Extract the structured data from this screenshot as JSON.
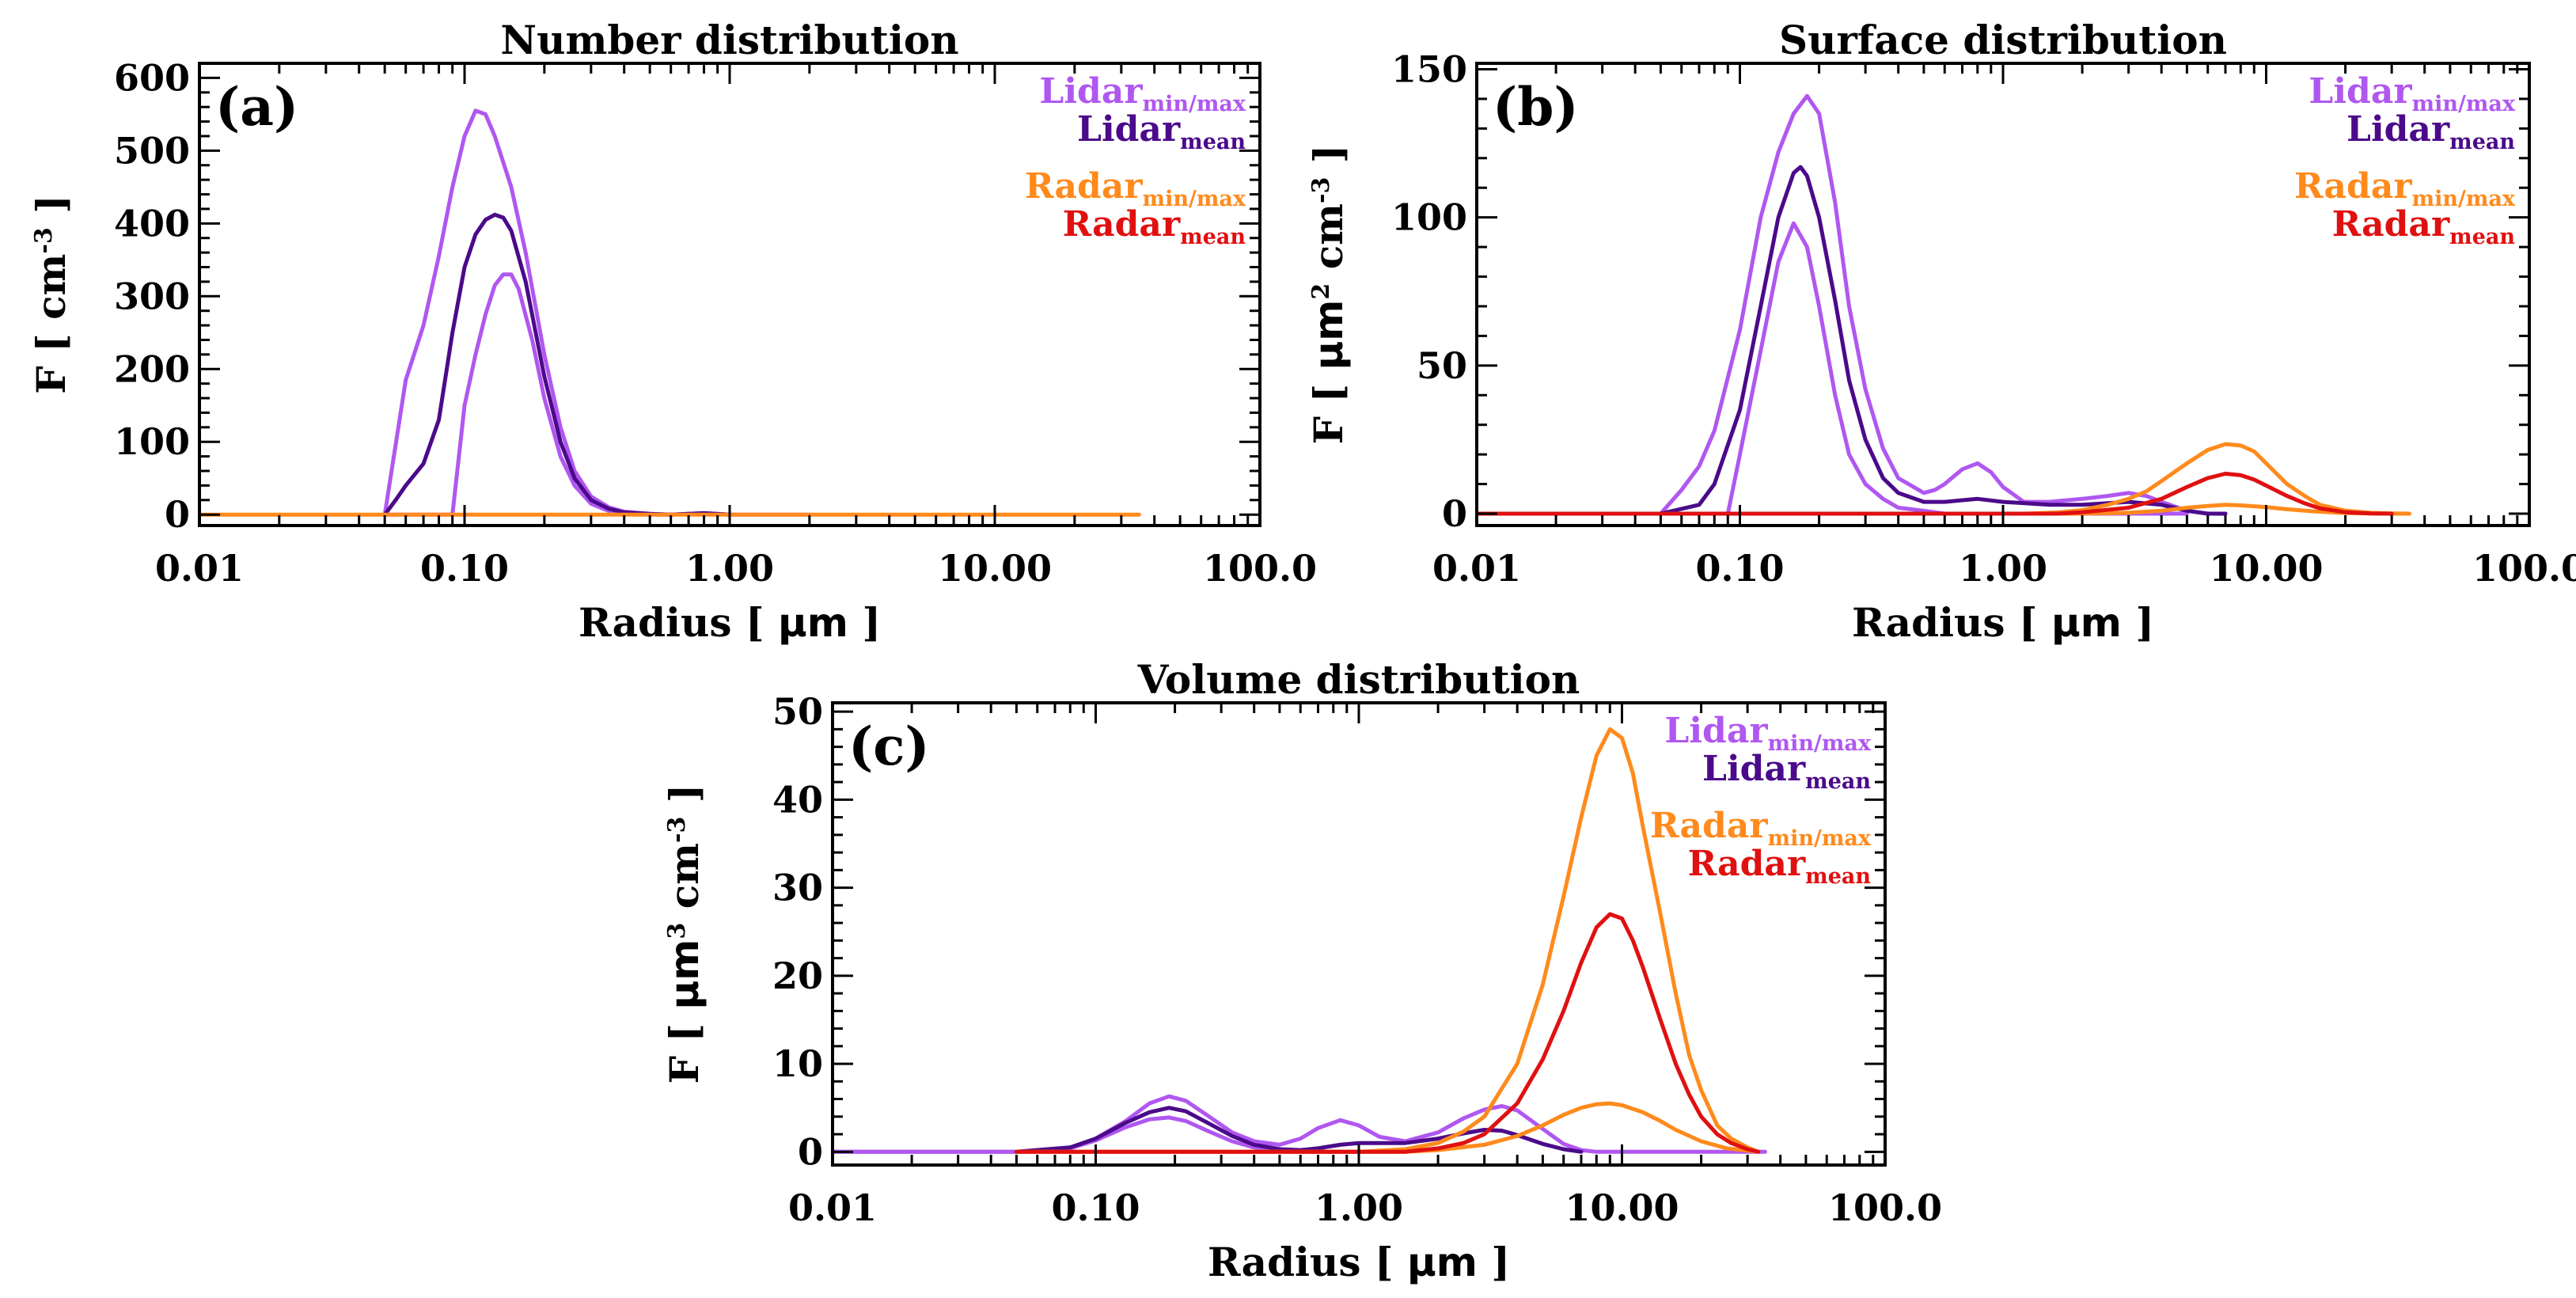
{
  "colors": {
    "lidar_minmax": "#b057f0",
    "lidar_mean": "#4b0a8a",
    "radar_minmax": "#ff8a1c",
    "radar_mean": "#e01010"
  },
  "legend": {
    "lidar": "Lidar",
    "radar": "Radar",
    "minmax": "min/max",
    "mean": "mean"
  },
  "xaxis": {
    "label_main": "Radius [ ",
    "label_unit": "μm",
    "label_end": " ]",
    "tick_labels": [
      "0.01",
      "0.10",
      "1.00",
      "10.00",
      "100.0"
    ],
    "tick_values": [
      0.01,
      0.1,
      1,
      10,
      100
    ]
  },
  "chart_data": [
    {
      "id": "a",
      "type": "line",
      "panel_label": "(a)",
      "title": "Number distribution",
      "ylabel": {
        "prefix": "F [ cm",
        "sup": "-3",
        "suffix": " ]"
      },
      "xscale": "log",
      "xlim": [
        0.01,
        100
      ],
      "ylim": [
        -15,
        620
      ],
      "yticks": [
        0,
        100,
        200,
        300,
        400,
        500,
        600
      ],
      "ytick_labels": [
        "0",
        "100",
        "200",
        "300",
        "400",
        "500",
        "600"
      ],
      "legend_position": "top-right",
      "series": [
        {
          "name": "Lidar max",
          "role": "lidar_minmax",
          "x": [
            0.05,
            0.06,
            0.07,
            0.08,
            0.09,
            0.1,
            0.11,
            0.12,
            0.13,
            0.15,
            0.17,
            0.2,
            0.23,
            0.26,
            0.3,
            0.35,
            0.4,
            0.5,
            0.6,
            0.8,
            1,
            1.5,
            2
          ],
          "y": [
            0,
            185,
            260,
            355,
            450,
            520,
            555,
            550,
            520,
            450,
            360,
            220,
            120,
            60,
            25,
            10,
            4,
            1,
            0,
            2,
            0,
            0,
            0
          ]
        },
        {
          "name": "Lidar min",
          "role": "lidar_minmax",
          "x": [
            0.05,
            0.09,
            0.1,
            0.11,
            0.12,
            0.13,
            0.14,
            0.15,
            0.16,
            0.18,
            0.2,
            0.23,
            0.26,
            0.3,
            0.35,
            0.4,
            0.5,
            0.6,
            0.8,
            1
          ],
          "y": [
            0,
            0,
            150,
            220,
            275,
            315,
            330,
            330,
            310,
            240,
            160,
            80,
            40,
            15,
            5,
            2,
            0,
            0,
            2,
            0
          ]
        },
        {
          "name": "Lidar mean",
          "role": "lidar_mean",
          "x": [
            0.05,
            0.055,
            0.06,
            0.07,
            0.08,
            0.09,
            0.1,
            0.11,
            0.12,
            0.13,
            0.14,
            0.15,
            0.17,
            0.2,
            0.23,
            0.26,
            0.3,
            0.35,
            0.4,
            0.5,
            0.6,
            0.8,
            1
          ],
          "y": [
            0,
            20,
            40,
            70,
            130,
            250,
            340,
            385,
            405,
            412,
            408,
            390,
            320,
            190,
            100,
            50,
            20,
            8,
            3,
            1,
            0,
            2,
            0
          ]
        },
        {
          "name": "Radar",
          "role": "radar_minmax",
          "x": [
            0.01,
            35
          ],
          "y": [
            0,
            0
          ]
        }
      ]
    },
    {
      "id": "b",
      "type": "line",
      "panel_label": "(b)",
      "title": "Surface distribution",
      "ylabel": {
        "prefix": "F [ ",
        "unit": "μm",
        "sup1": "2",
        "mid": " cm",
        "sup2": "-3",
        "suffix": " ]"
      },
      "xscale": "log",
      "xlim": [
        0.01,
        100
      ],
      "ylim": [
        -4,
        152
      ],
      "yticks": [
        0,
        50,
        100,
        150
      ],
      "ytick_labels": [
        "0",
        "50",
        "100",
        "150"
      ],
      "legend_position": "top-right",
      "series": [
        {
          "name": "Lidar max",
          "role": "lidar_minmax",
          "x": [
            0.05,
            0.06,
            0.07,
            0.08,
            0.1,
            0.12,
            0.14,
            0.16,
            0.18,
            0.2,
            0.23,
            0.26,
            0.3,
            0.35,
            0.4,
            0.5,
            0.55,
            0.6,
            0.7,
            0.8,
            0.9,
            1,
            1.2,
            1.5,
            2,
            2.5,
            3,
            3.5,
            4,
            5,
            6,
            7
          ],
          "y": [
            0,
            8,
            16,
            28,
            62,
            100,
            122,
            135,
            141,
            135,
            105,
            70,
            42,
            22,
            12,
            7,
            8,
            10,
            15,
            17,
            14,
            9,
            4,
            4,
            5,
            6,
            7,
            6,
            4,
            1,
            0,
            0
          ]
        },
        {
          "name": "Lidar min",
          "role": "lidar_minmax",
          "x": [
            0.05,
            0.09,
            0.1,
            0.12,
            0.14,
            0.16,
            0.18,
            0.2,
            0.23,
            0.26,
            0.3,
            0.35,
            0.4,
            0.5,
            0.6,
            0.7,
            0.8,
            1,
            1.5,
            2,
            3,
            4,
            5
          ],
          "y": [
            0,
            0,
            20,
            55,
            85,
            98,
            90,
            70,
            40,
            20,
            10,
            5,
            2,
            1,
            0,
            0,
            0,
            0,
            0,
            0,
            0,
            0,
            0
          ]
        },
        {
          "name": "Lidar mean",
          "role": "lidar_mean",
          "x": [
            0.05,
            0.07,
            0.08,
            0.1,
            0.12,
            0.14,
            0.16,
            0.17,
            0.18,
            0.2,
            0.23,
            0.26,
            0.3,
            0.35,
            0.4,
            0.5,
            0.6,
            0.8,
            1,
            1.5,
            2,
            3,
            4,
            5,
            6,
            7
          ],
          "y": [
            0,
            3,
            10,
            35,
            70,
            100,
            115,
            117,
            114,
            100,
            72,
            45,
            25,
            12,
            7,
            4,
            4,
            5,
            4,
            3,
            3,
            4,
            3,
            1,
            0,
            0
          ]
        },
        {
          "name": "Radar max",
          "role": "radar_minmax",
          "x": [
            0.01,
            1.2,
            1.6,
            2,
            2.5,
            3,
            3.5,
            4,
            5,
            6,
            7,
            8,
            9,
            10,
            12,
            14,
            16,
            20,
            25,
            30,
            35
          ],
          "y": [
            0,
            0,
            0.4,
            1.2,
            3,
            5,
            7.5,
            11,
            17,
            21.5,
            23.5,
            23,
            21,
            17,
            10,
            6,
            3,
            1,
            0.3,
            0.1,
            0
          ]
        },
        {
          "name": "Radar min",
          "role": "radar_minmax",
          "x": [
            0.01,
            2,
            3,
            4,
            5,
            6,
            7,
            8,
            10,
            12,
            15,
            20,
            25,
            35
          ],
          "y": [
            0,
            0,
            0.3,
            1,
            2,
            2.6,
            3,
            2.8,
            2.2,
            1.5,
            0.8,
            0.2,
            0.05,
            0
          ]
        },
        {
          "name": "Radar mean",
          "role": "radar_mean",
          "x": [
            0.01,
            1.6,
            2,
            3,
            4,
            5,
            6,
            7,
            8,
            9,
            10,
            12,
            14,
            16,
            20,
            25,
            30
          ],
          "y": [
            0,
            0,
            0.5,
            2,
            5,
            9,
            12,
            13.5,
            13,
            11.5,
            9.5,
            6,
            3.5,
            1.8,
            0.5,
            0.1,
            0
          ]
        }
      ]
    },
    {
      "id": "c",
      "type": "line",
      "panel_label": "(c)",
      "title": "Volume distribution",
      "ylabel": {
        "prefix": "F [ ",
        "unit": "μm",
        "sup1": "3",
        "mid": " cm",
        "sup2": "-3",
        "suffix": " ]"
      },
      "xscale": "log",
      "xlim": [
        0.01,
        100
      ],
      "ylim": [
        -1.5,
        51
      ],
      "yticks": [
        0,
        10,
        20,
        30,
        40,
        50
      ],
      "ytick_labels": [
        "0",
        "10",
        "20",
        "30",
        "40",
        "50"
      ],
      "legend_position": "top-right",
      "series": [
        {
          "name": "Lidar max",
          "role": "lidar_minmax",
          "x": [
            0.01,
            0.05,
            0.08,
            0.1,
            0.13,
            0.16,
            0.19,
            0.22,
            0.27,
            0.33,
            0.4,
            0.5,
            0.6,
            0.7,
            0.85,
            1,
            1.2,
            1.5,
            2,
            2.5,
            3,
            3.5,
            4,
            5,
            6,
            7,
            8,
            35
          ],
          "y": [
            0,
            0,
            0.5,
            1.5,
            3.5,
            5.5,
            6.3,
            5.8,
            4,
            2.2,
            1.2,
            0.8,
            1.5,
            2.7,
            3.6,
            3,
            1.7,
            1.2,
            2.2,
            3.8,
            4.8,
            5.2,
            4.7,
            2.6,
            0.9,
            0.2,
            0,
            0
          ]
        },
        {
          "name": "Lidar min",
          "role": "lidar_minmax",
          "x": [
            0.01,
            0.05,
            0.08,
            0.1,
            0.13,
            0.16,
            0.19,
            0.22,
            0.27,
            0.33,
            0.4,
            0.5,
            0.6,
            1
          ],
          "y": [
            0,
            0,
            0.4,
            1.3,
            2.8,
            3.7,
            3.9,
            3.5,
            2.3,
            1.2,
            0.5,
            0.15,
            0,
            0
          ]
        },
        {
          "name": "Lidar mean",
          "role": "lidar_mean",
          "x": [
            0.05,
            0.08,
            0.1,
            0.13,
            0.16,
            0.19,
            0.22,
            0.27,
            0.33,
            0.4,
            0.5,
            0.6,
            0.7,
            0.85,
            1,
            1.2,
            1.5,
            2,
            2.5,
            3,
            3.5,
            4,
            5,
            6,
            7
          ],
          "y": [
            0,
            0.5,
            1.5,
            3.3,
            4.5,
            5,
            4.6,
            3.2,
            1.8,
            0.8,
            0.3,
            0.2,
            0.4,
            0.8,
            1,
            1,
            1,
            1.5,
            2.1,
            2.5,
            2.4,
            1.9,
            0.9,
            0.3,
            0
          ]
        },
        {
          "name": "Radar max",
          "role": "radar_minmax",
          "x": [
            0.05,
            1,
            1.5,
            2,
            2.5,
            3,
            4,
            5,
            6,
            7,
            8,
            9,
            10,
            11,
            12,
            14,
            16,
            18,
            20,
            23,
            26,
            30,
            33
          ],
          "y": [
            0,
            0,
            0.3,
            1,
            2.3,
            4,
            10,
            19,
            29,
            38,
            45,
            48,
            47,
            43,
            37,
            27,
            18,
            11,
            7,
            3,
            1.5,
            0.5,
            0
          ]
        },
        {
          "name": "Radar min",
          "role": "radar_minmax",
          "x": [
            0.05,
            1.5,
            2,
            3,
            4,
            5,
            6,
            7,
            8,
            9,
            10,
            12,
            14,
            16,
            20,
            25,
            33
          ],
          "y": [
            0,
            0,
            0.2,
            0.8,
            1.8,
            3,
            4.2,
            5,
            5.4,
            5.5,
            5.3,
            4.5,
            3.5,
            2.5,
            1.2,
            0.4,
            0
          ]
        },
        {
          "name": "Radar mean",
          "role": "radar_mean",
          "x": [
            0.05,
            1.5,
            2,
            2.5,
            3,
            4,
            5,
            6,
            7,
            8,
            9,
            10,
            11,
            12,
            14,
            16,
            18,
            20,
            23,
            26,
            30,
            33
          ],
          "y": [
            0,
            0,
            0.4,
            1,
            2,
            5.5,
            10.5,
            16,
            21.5,
            25.5,
            27,
            26.5,
            24,
            21,
            15,
            10,
            6.5,
            4,
            2,
            1,
            0.3,
            0
          ]
        }
      ]
    }
  ]
}
